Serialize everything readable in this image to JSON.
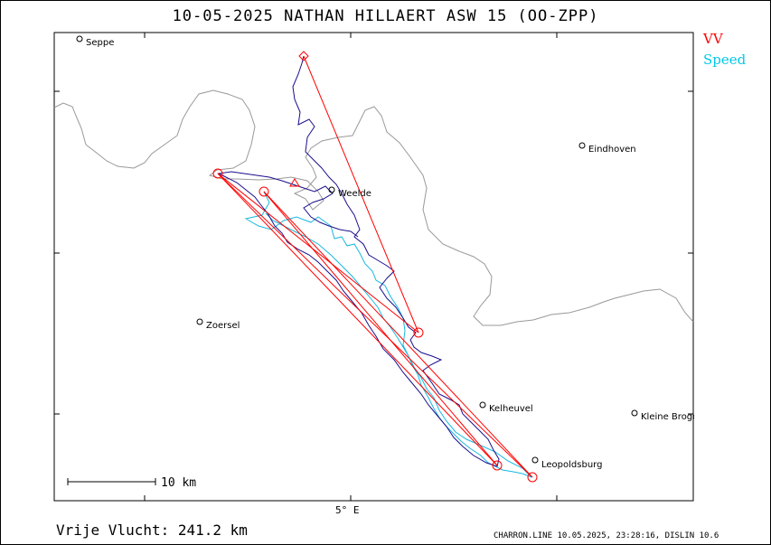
{
  "header": {
    "title": "10-05-2025   NATHAN HILLAERT   ASW 15 (OO-ZPP)"
  },
  "legend": {
    "vv_label": "VV",
    "speed_label": "Speed",
    "vv_color": "#ff0000",
    "speed_color": "#00c8e8"
  },
  "colors": {
    "track": "#1a0f8c",
    "speed_track": "#18b8e0",
    "border": "#999999",
    "task": "#ff0000"
  },
  "map": {
    "places": [
      "Seppe",
      "Eindhoven",
      "Weelde",
      "Zoersel",
      "Kelheuvel",
      "Kleine Brogel",
      "Leopoldsburg"
    ],
    "longitude_label": "5° E",
    "scale_label": "10 km"
  },
  "footer": {
    "distance": "Vrije Vlucht:  241.2 km",
    "meta": "CHARRON.LINE 10.05.2025, 23:28:16, DISLIN 10.6"
  }
}
